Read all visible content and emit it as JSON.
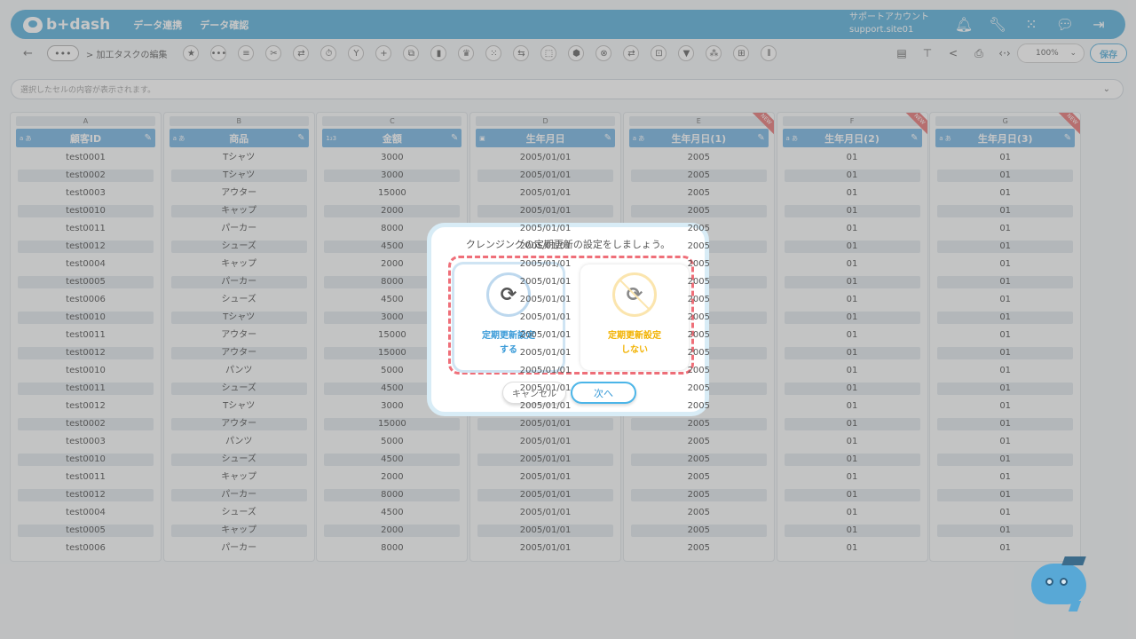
{
  "header": {
    "logo": "b+dash",
    "nav": [
      "データ連携",
      "データ確認"
    ],
    "account_name": "サポートアカウント",
    "account_id": "support.site01",
    "icons": [
      "bell-icon",
      "wrench-icon",
      "grid-icon",
      "chat-icon",
      "logout-icon"
    ]
  },
  "toolbar": {
    "back": "←",
    "more": "•••",
    "breadcrumb": "> 加工タスクの編集",
    "tools": [
      "★",
      "•••",
      "≡",
      "✂",
      "⇄",
      "⏱",
      "Y",
      "+",
      "⧉",
      "▮",
      "♛",
      "⁙",
      "⇆",
      "⬚",
      "⬢",
      "⊗",
      "⇄",
      "⊡",
      "▼",
      "⁂",
      "⊞",
      "⫴"
    ],
    "right_tools": [
      "▤",
      "⊤",
      "<",
      "⎙",
      "‹·›"
    ],
    "zoom": "100%",
    "save": "保存"
  },
  "cellbar": {
    "placeholder": "選択したセルの内容が表示されます。"
  },
  "columns": [
    {
      "letter": "A",
      "name": "顧客ID",
      "type": "a あ",
      "is_new": false,
      "values": [
        "test0001",
        "test0002",
        "test0003",
        "test0010",
        "test0011",
        "test0012",
        "test0004",
        "test0005",
        "test0006",
        "test0010",
        "test0011",
        "test0012",
        "test0010",
        "test0011",
        "test0012",
        "test0002",
        "test0003",
        "test0010",
        "test0011",
        "test0012",
        "test0004",
        "test0005",
        "test0006"
      ]
    },
    {
      "letter": "B",
      "name": "商品",
      "type": "a あ",
      "is_new": false,
      "values": [
        "Tシャツ",
        "Tシャツ",
        "アウター",
        "キャップ",
        "パーカー",
        "シューズ",
        "キャップ",
        "パーカー",
        "シューズ",
        "Tシャツ",
        "アウター",
        "アウター",
        "パンツ",
        "シューズ",
        "Tシャツ",
        "アウター",
        "パンツ",
        "シューズ",
        "キャップ",
        "パーカー",
        "シューズ",
        "キャップ",
        "パーカー"
      ]
    },
    {
      "letter": "C",
      "name": "金額",
      "type": "1₂3",
      "is_new": false,
      "values": [
        "3000",
        "3000",
        "15000",
        "2000",
        "8000",
        "4500",
        "2000",
        "8000",
        "4500",
        "3000",
        "15000",
        "15000",
        "5000",
        "4500",
        "3000",
        "15000",
        "5000",
        "4500",
        "2000",
        "8000",
        "4500",
        "2000",
        "8000"
      ]
    },
    {
      "letter": "D",
      "name": "生年月日",
      "type": "▣",
      "is_new": false,
      "values": [
        "2005/01/01",
        "2005/01/01",
        "2005/01/01",
        "2005/01/01",
        "2005/01/01",
        "2005/01/01",
        "2005/01/01",
        "2005/01/01",
        "2005/01/01",
        "2005/01/01",
        "2005/01/01",
        "2005/01/01",
        "2005/01/01",
        "2005/01/01",
        "2005/01/01",
        "2005/01/01",
        "2005/01/01",
        "2005/01/01",
        "2005/01/01",
        "2005/01/01",
        "2005/01/01",
        "2005/01/01",
        "2005/01/01"
      ]
    },
    {
      "letter": "E",
      "name": "生年月日(1)",
      "type": "a あ",
      "is_new": true,
      "values": [
        "2005",
        "2005",
        "2005",
        "2005",
        "2005",
        "2005",
        "2005",
        "2005",
        "2005",
        "2005",
        "2005",
        "2005",
        "2005",
        "2005",
        "2005",
        "2005",
        "2005",
        "2005",
        "2005",
        "2005",
        "2005",
        "2005",
        "2005"
      ]
    },
    {
      "letter": "F",
      "name": "生年月日(2)",
      "type": "a あ",
      "is_new": true,
      "values": [
        "01",
        "01",
        "01",
        "01",
        "01",
        "01",
        "01",
        "01",
        "01",
        "01",
        "01",
        "01",
        "01",
        "01",
        "01",
        "01",
        "01",
        "01",
        "01",
        "01",
        "01",
        "01",
        "01"
      ]
    },
    {
      "letter": "G",
      "name": "生年月日(3)",
      "type": "a あ",
      "is_new": true,
      "values": [
        "01",
        "01",
        "01",
        "01",
        "01",
        "01",
        "01",
        "01",
        "01",
        "01",
        "01",
        "01",
        "01",
        "01",
        "01",
        "01",
        "01",
        "01",
        "01",
        "01",
        "01",
        "01",
        "01"
      ]
    }
  ],
  "new_badge": "NEW",
  "dialog": {
    "title": "クレンジングの定期更新の設定をしましょう。",
    "option_on": {
      "line1": "定期更新設定",
      "line2": "する",
      "icon": "refresh-icon"
    },
    "option_off": {
      "line1": "定期更新設定",
      "line2": "しない",
      "icon": "refresh-off-icon"
    },
    "cancel": "キャンセル",
    "next": "次へ"
  },
  "colors": {
    "accent": "#4aa9d8",
    "header_cell": "#6aaee0",
    "dashed_frame": "#ef6f79",
    "option_off": "#f2b200"
  }
}
